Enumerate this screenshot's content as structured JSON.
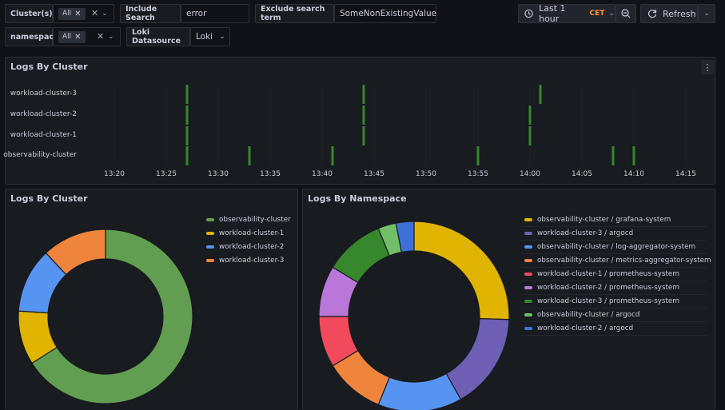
{
  "variables": {
    "cluster": {
      "label": "Cluster(s)",
      "value": "All"
    },
    "include": {
      "label": "Include Search",
      "value": "error"
    },
    "exclude": {
      "label": "Exclude search term",
      "value": "SomeNonExistingValue"
    },
    "namespace": {
      "label": "namespace",
      "value": "All"
    },
    "datasource": {
      "label": "Loki Datasource",
      "value": "Loki"
    }
  },
  "toolbar": {
    "time_range": "Last 1 hour",
    "timezone": "CET",
    "refresh_label": "Refresh"
  },
  "panels": {
    "timeline": {
      "title": "Logs By Cluster",
      "rows": [
        "workload-cluster-3",
        "workload-cluster-2",
        "workload-cluster-1",
        "observability-cluster"
      ],
      "x_ticks": [
        "13:20",
        "13:25",
        "13:30",
        "13:35",
        "13:40",
        "13:45",
        "13:50",
        "13:55",
        "14:00",
        "14:05",
        "14:10",
        "14:15"
      ],
      "color": "#37872d"
    },
    "cluster_donut": {
      "title": "Logs By Cluster"
    },
    "namespace_donut": {
      "title": "Logs By Namespace"
    }
  },
  "chart_data": [
    {
      "type": "heatmap",
      "title": "Logs By Cluster",
      "xlabel": "",
      "ylabel": "",
      "x_range": [
        "13:16",
        "14:17"
      ],
      "series": [
        {
          "name": "workload-cluster-3",
          "events": [
            "13:27",
            "13:44",
            "14:01"
          ]
        },
        {
          "name": "workload-cluster-2",
          "events": [
            "13:27",
            "13:44",
            "14:00"
          ]
        },
        {
          "name": "workload-cluster-1",
          "events": [
            "13:27",
            "13:44",
            "14:00"
          ]
        },
        {
          "name": "observability-cluster",
          "events": [
            "13:27",
            "13:33",
            "13:41",
            "13:55",
            "14:08",
            "14:10"
          ]
        }
      ]
    },
    {
      "type": "pie",
      "title": "Logs By Cluster",
      "legend": "top-right",
      "labels": [
        "observability-cluster",
        "workload-cluster-1",
        "workload-cluster-2",
        "workload-cluster-3"
      ],
      "values": [
        66,
        10,
        12,
        12
      ],
      "colors": [
        "#629e51",
        "#e0b400",
        "#5794f2",
        "#ef843c"
      ]
    },
    {
      "type": "pie",
      "title": "Logs By Namespace",
      "legend": "top-right",
      "labels": [
        "observability-cluster / grafana-system",
        "workload-cluster-3 / argocd",
        "observability-cluster / log-aggregator-system",
        "observability-cluster / metrics-aggregator-system",
        "workload-cluster-1 / prometheus-system",
        "workload-cluster-2 / prometheus-system",
        "workload-cluster-3 / prometheus-system",
        "observability-cluster / argocd",
        "workload-cluster-2 / argocd"
      ],
      "values": [
        25,
        16,
        14,
        10,
        8.5,
        8.5,
        10,
        3,
        3
      ],
      "colors": [
        "#e0b400",
        "#6e5fb5",
        "#5794f2",
        "#ef843c",
        "#f2495c",
        "#b877d9",
        "#37872d",
        "#73bf69",
        "#3d71d9"
      ]
    }
  ]
}
